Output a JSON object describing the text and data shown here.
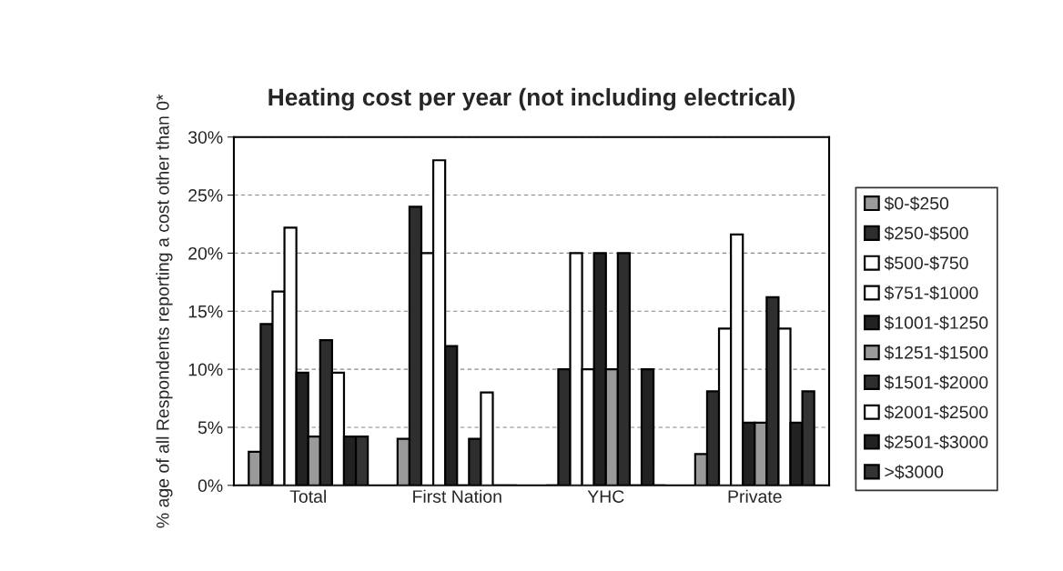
{
  "chart_data": {
    "type": "bar",
    "title": "Heating cost per year (not including electrical)",
    "ylabel": "% age of all Respondents reporting a cost other than 0*",
    "categories": [
      "Total",
      "First Nation",
      "YHC",
      "Private"
    ],
    "series": [
      {
        "name": "$0-$250",
        "color": "#9a9a9a",
        "values": [
          2.9,
          4,
          0,
          2.7
        ]
      },
      {
        "name": "$250-$500",
        "color": "#2e2e2e",
        "values": [
          13.9,
          24,
          10,
          8.1
        ]
      },
      {
        "name": "$500-$750",
        "color": "#ffffff",
        "values": [
          16.7,
          20,
          20,
          13.5
        ]
      },
      {
        "name": "$751-$1000",
        "color": "#ffffff",
        "values": [
          22.2,
          28,
          10,
          21.6
        ]
      },
      {
        "name": "$1001-$1250",
        "color": "#222222",
        "values": [
          9.7,
          12,
          20,
          5.4
        ]
      },
      {
        "name": "$1251-$1500",
        "color": "#9a9a9a",
        "values": [
          4.2,
          0,
          10,
          5.4
        ]
      },
      {
        "name": "$1501-$2000",
        "color": "#2e2e2e",
        "values": [
          12.5,
          4,
          20,
          16.2
        ]
      },
      {
        "name": "$2001-$2500",
        "color": "#ffffff",
        "values": [
          9.7,
          8,
          0,
          13.5
        ]
      },
      {
        "name": "$2501-$3000",
        "color": "#222222",
        "values": [
          4.2,
          0,
          10,
          5.4
        ]
      },
      {
        "name": ">$3000",
        "color": "#333333",
        "values": [
          4.2,
          0,
          0,
          8.1
        ]
      }
    ],
    "ylim": [
      0,
      30
    ],
    "yticks": [
      {
        "value": 0,
        "label": "0%"
      },
      {
        "value": 5,
        "label": "5%"
      },
      {
        "value": 10,
        "label": "10%"
      },
      {
        "value": 15,
        "label": "15%"
      },
      {
        "value": 20,
        "label": "20%"
      },
      {
        "value": 25,
        "label": "25%"
      },
      {
        "value": 30,
        "label": "30%"
      }
    ],
    "grid": "y",
    "legend": "right"
  }
}
